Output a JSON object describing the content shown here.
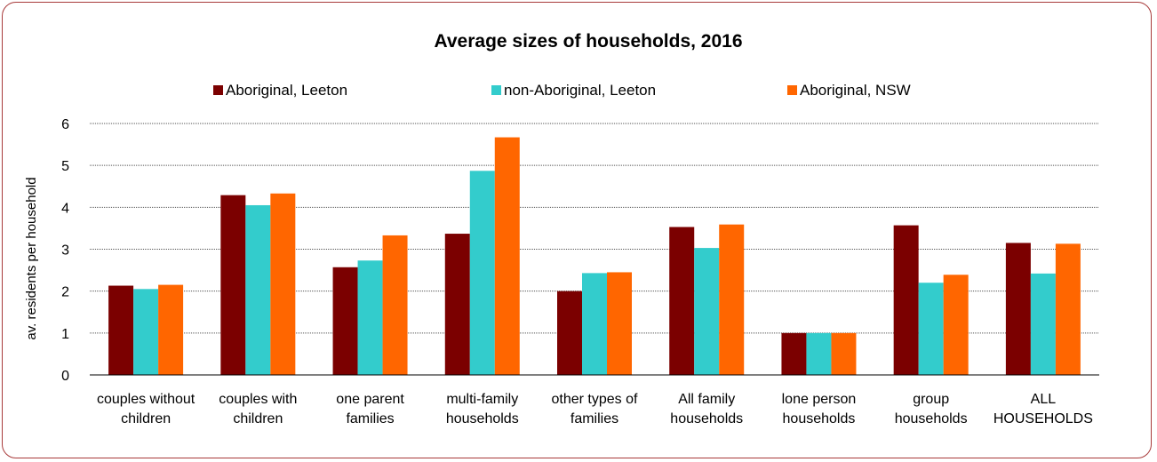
{
  "chart_data": {
    "type": "bar",
    "title": "Average sizes of households, 2016",
    "ylabel": "av. residents per household",
    "xlabel": "",
    "ylim": [
      0,
      6
    ],
    "yticks": [
      "0",
      "1",
      "2",
      "3",
      "4",
      "5",
      "6"
    ],
    "grid": true,
    "legend_position": "top",
    "categories": [
      [
        "couples without",
        "children"
      ],
      [
        "couples with",
        "children"
      ],
      [
        "one parent",
        "families"
      ],
      [
        "multi-family",
        "households"
      ],
      [
        "other types of",
        "families"
      ],
      [
        "All family",
        "households"
      ],
      [
        "lone person",
        "households"
      ],
      [
        "group",
        "households"
      ],
      [
        "ALL",
        "HOUSEHOLDS"
      ]
    ],
    "series": [
      {
        "name": "Aboriginal, Leeton",
        "color": "#7b0000",
        "values": [
          2.13,
          4.29,
          2.57,
          3.37,
          2.0,
          3.53,
          1.0,
          3.57,
          3.15
        ]
      },
      {
        "name": "non-Aboriginal, Leeton",
        "color": "#33cccc",
        "values": [
          2.05,
          4.05,
          2.73,
          4.87,
          2.43,
          3.03,
          1.0,
          2.2,
          2.42
        ]
      },
      {
        "name": "Aboriginal, NSW",
        "color": "#ff6600",
        "values": [
          2.15,
          4.33,
          3.33,
          5.67,
          2.45,
          3.59,
          1.0,
          2.39,
          3.13
        ]
      }
    ]
  }
}
